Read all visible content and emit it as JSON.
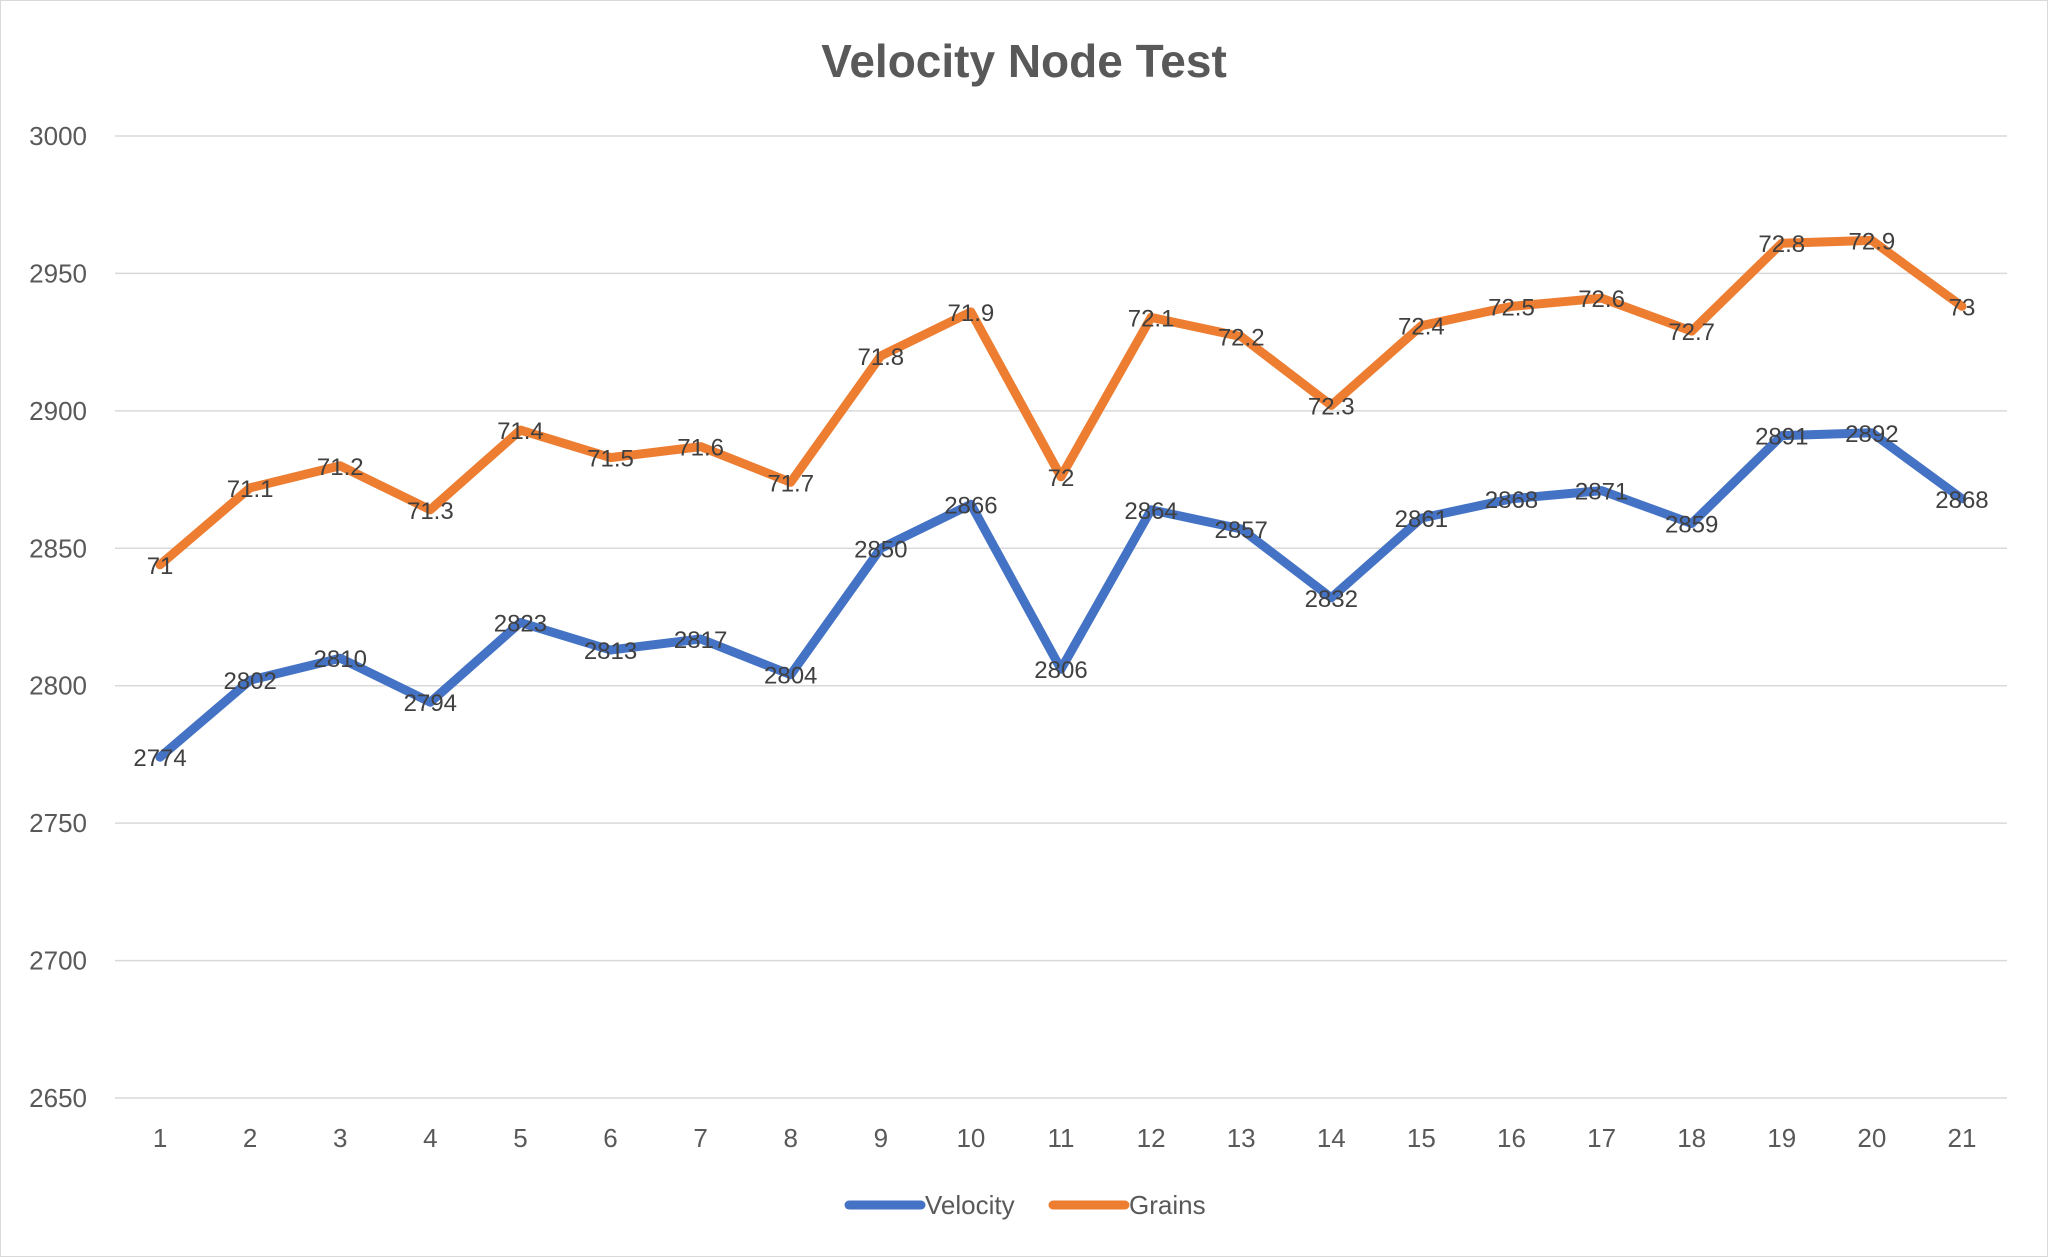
{
  "chart_data": {
    "type": "line",
    "title": "Velocity Node Test",
    "xlabel": "",
    "ylabel": "",
    "categories": [
      "1",
      "2",
      "3",
      "4",
      "5",
      "6",
      "7",
      "8",
      "9",
      "10",
      "11",
      "12",
      "13",
      "14",
      "15",
      "16",
      "17",
      "18",
      "19",
      "20",
      "21"
    ],
    "ylim": [
      2650,
      3000
    ],
    "yticks": [
      "2650",
      "2700",
      "2750",
      "2800",
      "2850",
      "2900",
      "2950",
      "3000"
    ],
    "grid": true,
    "legend_position": "bottom",
    "series": [
      {
        "name": "Velocity",
        "color": "#4472C4",
        "values": [
          2774,
          2802,
          2810,
          2794,
          2823,
          2813,
          2817,
          2804,
          2850,
          2866,
          2806,
          2864,
          2857,
          2832,
          2861,
          2868,
          2871,
          2859,
          2891,
          2892,
          2868
        ],
        "labels": [
          "2774",
          "2802",
          "2810",
          "2794",
          "2823",
          "2813",
          "2817",
          "2804",
          "2850",
          "2866",
          "2806",
          "2864",
          "2857",
          "2832",
          "2861",
          "2868",
          "2871",
          "2859",
          "2891",
          "2892",
          "2868"
        ]
      },
      {
        "name": "Grains",
        "color": "#ED7D31",
        "values": [
          2844,
          2872,
          2880,
          2864,
          2893,
          2883,
          2887,
          2874,
          2920,
          2936,
          2876,
          2934,
          2927,
          2902,
          2931,
          2938,
          2941,
          2929,
          2961,
          2962,
          2938
        ],
        "labels": [
          "71",
          "71.1",
          "71.2",
          "71.3",
          "71.4",
          "71.5",
          "71.6",
          "71.7",
          "71.8",
          "71.9",
          "72",
          "72.1",
          "72.2",
          "72.3",
          "72.4",
          "72.5",
          "72.6",
          "72.7",
          "72.8",
          "72.9",
          "73"
        ]
      }
    ]
  }
}
